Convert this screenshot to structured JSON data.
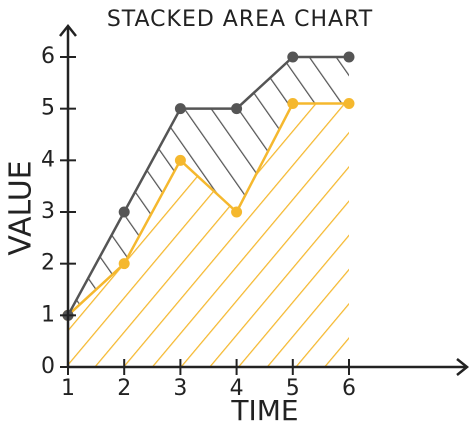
{
  "chart_data": {
    "type": "stacked_area",
    "title": "STACKED AREA CHART",
    "x_label": "TIME",
    "y_label": "VALUE",
    "x": [
      1,
      2,
      3,
      4,
      5,
      6
    ],
    "series": [
      {
        "color": "#f5b82e",
        "values": [
          1,
          2,
          4,
          3,
          5.1,
          5.1
        ]
      },
      {
        "color": "#555555",
        "values": [
          0,
          1,
          1,
          2,
          0.9,
          0.9
        ]
      }
    ],
    "xlim": [
      1,
      8.1
    ],
    "ylim": [
      0,
      6.6
    ],
    "xticks": [
      1,
      2,
      3,
      4,
      5,
      6
    ],
    "yticks": [
      0,
      1,
      2,
      3,
      4,
      5,
      6
    ]
  }
}
